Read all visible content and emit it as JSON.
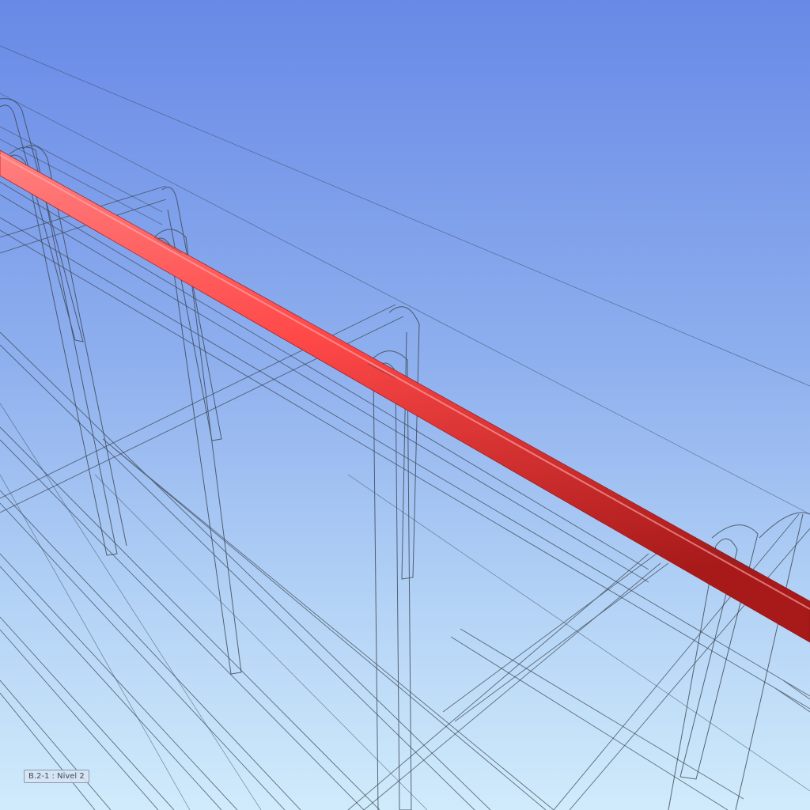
{
  "viewport": {
    "background_top": "#6889e6",
    "background_bottom": "#d0ebfb"
  },
  "highlighted_element": {
    "color": "#ff4a4a",
    "label": "B.2-1 : Nivel 2"
  },
  "wireframe": {
    "color": "#3a4450"
  }
}
